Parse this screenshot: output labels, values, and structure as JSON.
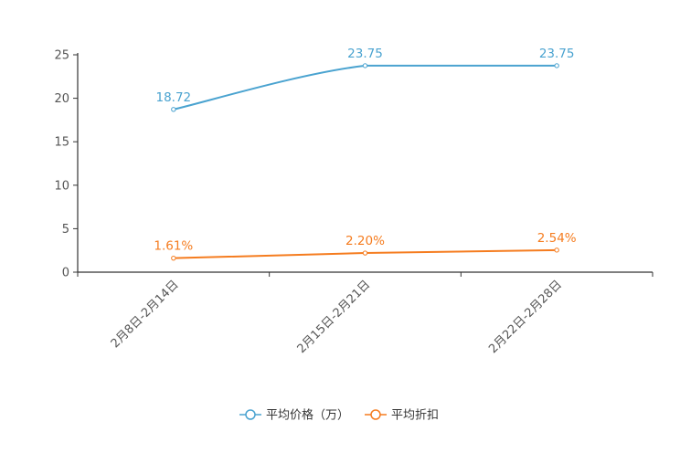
{
  "chart_data": {
    "type": "line",
    "categories": [
      "2月8日-2月14日",
      "2月15日-2月21日",
      "2月22日-2月28日"
    ],
    "series": [
      {
        "name": "平均价格（万）",
        "values": [
          18.72,
          23.75,
          23.75
        ],
        "labels": [
          "18.72",
          "23.75",
          "23.75"
        ],
        "color": "#4aa3d0",
        "smooth": true
      },
      {
        "name": "平均折扣",
        "values": [
          1.61,
          2.2,
          2.54
        ],
        "labels": [
          "1.61%",
          "2.20%",
          "2.54%"
        ],
        "color": "#f57c1f",
        "smooth": false
      }
    ],
    "y_ticks": [
      "0",
      "5",
      "10",
      "15",
      "20",
      "25"
    ],
    "ylim": [
      0,
      25
    ],
    "legend_position": "bottom-center",
    "grid": false
  },
  "colors": {
    "axis": "#333333",
    "tick_label": "#555555",
    "legend_text": "#333333"
  }
}
